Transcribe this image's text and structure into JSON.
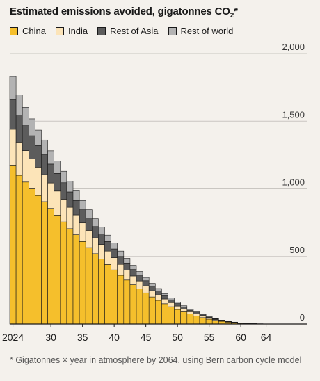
{
  "title_main": "Estimated emissions avoided, gigatonnes CO",
  "title_sub": "2",
  "title_star": "*",
  "note": "* Gigatonnes × year in atmosphere by 2064, using Bern carbon cycle model",
  "colors": {
    "China": "#f5bf2c",
    "India": "#fce4b8",
    "Rest of Asia": "#5c5c5c",
    "Rest of world": "#b3b3b3",
    "grid": "#c9c6c1",
    "axis": "#1a1a1a",
    "bar_stroke": "#1a1a1a"
  },
  "chart_data": {
    "type": "bar",
    "stacked": true,
    "title": "Estimated emissions avoided, gigatonnes CO2*",
    "xlabel": "",
    "ylabel": "",
    "ylim": [
      0,
      2000
    ],
    "yticks": [
      0,
      500,
      1000,
      1500,
      2000
    ],
    "ytick_labels": [
      "0",
      "500",
      "1,000",
      "1,500",
      "2,000"
    ],
    "xtick_labels": [
      {
        "year": 2024,
        "label": "2024"
      },
      {
        "year": 2030,
        "label": "30"
      },
      {
        "year": 2035,
        "label": "35"
      },
      {
        "year": 2040,
        "label": "40"
      },
      {
        "year": 2045,
        "label": "45"
      },
      {
        "year": 2050,
        "label": "50"
      },
      {
        "year": 2055,
        "label": "55"
      },
      {
        "year": 2060,
        "label": "60"
      },
      {
        "year": 2064,
        "label": "64"
      }
    ],
    "grid": true,
    "legend_position": "top-left",
    "categories": [
      2024,
      2025,
      2026,
      2027,
      2028,
      2029,
      2030,
      2031,
      2032,
      2033,
      2034,
      2035,
      2036,
      2037,
      2038,
      2039,
      2040,
      2041,
      2042,
      2043,
      2044,
      2045,
      2046,
      2047,
      2048,
      2049,
      2050,
      2051,
      2052,
      2053,
      2054,
      2055,
      2056,
      2057,
      2058,
      2059,
      2060,
      2061,
      2062,
      2063
    ],
    "series": [
      {
        "name": "China",
        "values": [
          1170,
          1100,
          1050,
          1000,
          950,
          905,
          855,
          805,
          755,
          705,
          660,
          610,
          565,
          520,
          480,
          440,
          400,
          360,
          325,
          290,
          260,
          230,
          200,
          175,
          150,
          128,
          108,
          90,
          74,
          60,
          47,
          36,
          27,
          20,
          14,
          9,
          5,
          3,
          2,
          1
        ]
      },
      {
        "name": "India",
        "values": [
          270,
          245,
          232,
          221,
          210,
          200,
          188,
          178,
          168,
          158,
          147,
          137,
          127,
          117,
          108,
          99,
          90,
          81,
          73,
          65,
          58,
          52,
          46,
          40,
          35,
          30,
          25,
          21,
          17,
          14,
          11,
          8,
          6,
          4,
          3,
          2,
          1,
          0.5,
          0.3,
          0.2
        ]
      },
      {
        "name": "Rest of Asia",
        "values": [
          220,
          200,
          185,
          172,
          160,
          150,
          140,
          131,
          122,
          114,
          106,
          98,
          91,
          84,
          77,
          71,
          65,
          59,
          53,
          48,
          43,
          38,
          33,
          29,
          25,
          21,
          18,
          15,
          12,
          10,
          8,
          6,
          5,
          3,
          2,
          2,
          1,
          0.5,
          0.3,
          0.2
        ]
      },
      {
        "name": "Rest of world",
        "values": [
          170,
          150,
          135,
          124,
          114,
          106,
          98,
          91,
          85,
          79,
          73,
          68,
          62,
          57,
          52,
          47,
          43,
          39,
          35,
          31,
          27,
          24,
          21,
          18,
          15,
          13,
          11,
          9,
          7,
          6,
          5,
          4,
          3,
          2,
          1.5,
          1,
          0.5,
          0.3,
          0.2,
          0.1
        ]
      }
    ]
  }
}
